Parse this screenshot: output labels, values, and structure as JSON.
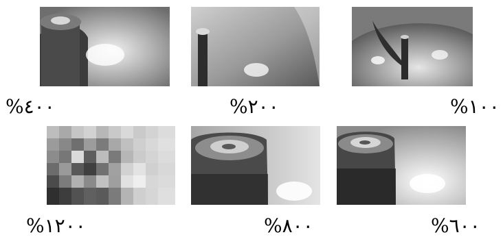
{
  "figure": {
    "rows": [
      {
        "panels": [
          {
            "id": "p400",
            "label": "%٤٠٠"
          },
          {
            "id": "p200",
            "label": "%٢٠٠"
          },
          {
            "id": "p100",
            "label": "%١٠٠"
          }
        ]
      },
      {
        "panels": [
          {
            "id": "p1200",
            "label": "%١٢٠٠"
          },
          {
            "id": "p800",
            "label": "%٨٠٠"
          },
          {
            "id": "p600",
            "label": "%٦٠٠"
          }
        ]
      }
    ]
  }
}
